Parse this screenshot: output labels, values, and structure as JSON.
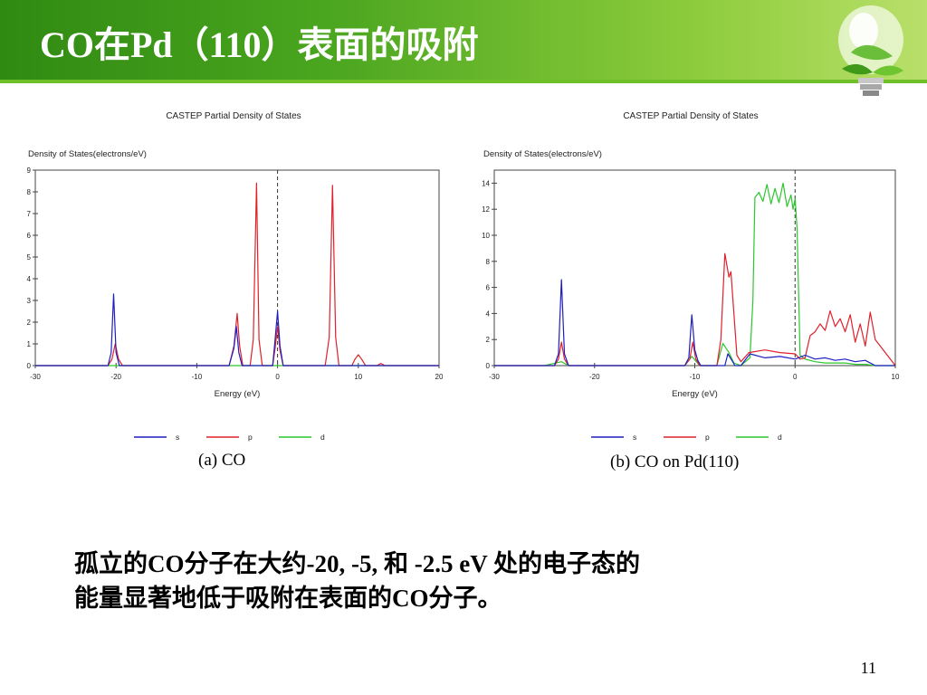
{
  "slide": {
    "title": "CO在Pd（110）表面的吸附",
    "body_line1": "孤立的CO分子在大约-20, -5,  和 -2.5 eV 处的电子态的",
    "body_line2": "能量显著地低于吸附在表面的CO分子。",
    "page_number": "11",
    "accent_color": "#4aa51f"
  },
  "chart_data": [
    {
      "type": "line",
      "title": "CASTEP Partial  Density of States",
      "caption": "(a) CO",
      "xlabel": "Energy (eV)",
      "ylabel": "Density of States(electrons/eV)",
      "xlim": [
        -30,
        20
      ],
      "ylim": [
        0,
        9
      ],
      "xticks": [
        -30,
        -20,
        -10,
        0,
        10,
        20
      ],
      "yticks": [
        0,
        1,
        2,
        3,
        4,
        5,
        6,
        7,
        8,
        9
      ],
      "fermi_level": 0,
      "legend_position": "bottom",
      "series": [
        {
          "name": "s",
          "color": "#1f1fbf",
          "x": [
            -30,
            -21,
            -20.6,
            -20.3,
            -20,
            -19.6,
            -19.2,
            -6,
            -5.4,
            -5.1,
            -4.8,
            -4.4,
            -3.8,
            -3,
            -2.5,
            -2,
            -0.6,
            -0.3,
            0,
            0.3,
            0.7,
            20
          ],
          "y": [
            0,
            0,
            0.6,
            3.3,
            0.6,
            0,
            0,
            0,
            0.8,
            1.8,
            0.6,
            0,
            0,
            0,
            0,
            0,
            0,
            1.2,
            2.5,
            0.9,
            0,
            0
          ]
        },
        {
          "name": "p",
          "color": "#e0202a",
          "x": [
            -30,
            -21,
            -20.5,
            -20.1,
            -19.7,
            -19.2,
            -6,
            -5.4,
            -5.0,
            -4.7,
            -4.3,
            -3.4,
            -3.0,
            -2.6,
            -2.3,
            -1.9,
            -0.6,
            -0.3,
            0,
            0.3,
            0.7,
            5.9,
            6.4,
            6.8,
            7.2,
            7.6,
            9.2,
            9.6,
            10.0,
            10.4,
            10.9,
            12.3,
            12.8,
            13.3,
            20
          ],
          "y": [
            0,
            0,
            0.3,
            1.0,
            0.3,
            0,
            0,
            0.9,
            2.4,
            0.9,
            0,
            0,
            1.2,
            8.4,
            1.2,
            0,
            0,
            0.8,
            1.8,
            0.7,
            0,
            0,
            1.3,
            8.3,
            1.3,
            0,
            0,
            0.3,
            0.5,
            0.3,
            0,
            0,
            0.1,
            0,
            0
          ]
        },
        {
          "name": "d",
          "color": "#2cc72c",
          "x": [
            -30,
            20
          ],
          "y": [
            0,
            0
          ]
        }
      ]
    },
    {
      "type": "line",
      "title": "CASTEP Partial  Density of States",
      "caption": "(b) CO on Pd(110)",
      "xlabel": "Energy (eV)",
      "ylabel": "Density of States(electrons/eV)",
      "xlim": [
        -30,
        10
      ],
      "ylim": [
        0,
        15
      ],
      "xticks": [
        -30,
        -20,
        -10,
        0,
        10
      ],
      "yticks": [
        0,
        2,
        4,
        6,
        8,
        10,
        12,
        14
      ],
      "fermi_level": 0,
      "legend_position": "bottom",
      "series": [
        {
          "name": "s",
          "color": "#1f1fbf",
          "x": [
            -30,
            -24,
            -23.6,
            -23.3,
            -23.0,
            -22.6,
            -11,
            -10.6,
            -10.3,
            -10.0,
            -9.7,
            -9.4,
            -8.5,
            -7.0,
            -6.7,
            -6.3,
            -6.0,
            -5.4,
            -4.5,
            -3,
            -1.5,
            0,
            1,
            2,
            3,
            4,
            5,
            6,
            7,
            8,
            10
          ],
          "y": [
            0,
            0,
            0.9,
            6.6,
            0.9,
            0,
            0,
            0.6,
            3.9,
            1.2,
            0.4,
            0,
            0,
            0,
            0.9,
            0.4,
            0,
            0,
            0.9,
            0.6,
            0.7,
            0.5,
            0.8,
            0.5,
            0.6,
            0.4,
            0.5,
            0.3,
            0.4,
            0,
            0
          ]
        },
        {
          "name": "p",
          "color": "#e0202a",
          "x": [
            -30,
            -24,
            -23.6,
            -23.3,
            -23.0,
            -22.6,
            -11,
            -10.5,
            -10.2,
            -9.9,
            -9.5,
            -7.8,
            -7.4,
            -7.0,
            -6.6,
            -6.4,
            -6.1,
            -5.8,
            -5.4,
            -4.6,
            -3,
            -1.5,
            0,
            0.5,
            1,
            1.5,
            2,
            2.5,
            3,
            3.5,
            4,
            4.5,
            5,
            5.5,
            6,
            6.5,
            7,
            7.5,
            8,
            10
          ],
          "y": [
            0,
            0,
            0.5,
            1.8,
            0.5,
            0,
            0,
            0.5,
            1.8,
            0.5,
            0,
            0,
            2.0,
            8.6,
            6.8,
            7.2,
            4.0,
            0.8,
            0.3,
            1.0,
            1.2,
            1.0,
            0.9,
            0.5,
            0.6,
            2.3,
            2.6,
            3.2,
            2.7,
            4.2,
            3.0,
            3.6,
            2.6,
            3.9,
            1.8,
            3.2,
            1.5,
            4.1,
            2.0,
            0
          ]
        },
        {
          "name": "d",
          "color": "#2cc72c",
          "x": [
            -30,
            -25,
            -23.3,
            -22.6,
            -11,
            -10.3,
            -9.5,
            -7.8,
            -7.2,
            -6.6,
            -6.1,
            -5.4,
            -4.5,
            -4.2,
            -4.0,
            -3.6,
            -3.2,
            -2.8,
            -2.4,
            -2.0,
            -1.6,
            -1.2,
            -0.8,
            -0.4,
            -0.2,
            0,
            0.2,
            0.5,
            1,
            2,
            3,
            4,
            5,
            6,
            7,
            8,
            10
          ],
          "y": [
            0,
            0,
            0.3,
            0,
            0,
            0.7,
            0,
            0,
            1.7,
            1.0,
            0.2,
            0,
            0.6,
            5,
            12.9,
            13.3,
            12.6,
            13.9,
            12.4,
            13.6,
            12.5,
            14.0,
            12.2,
            13.1,
            12.0,
            12.8,
            10.5,
            0.8,
            0.5,
            0.3,
            0.2,
            0.2,
            0.2,
            0.1,
            0.1,
            0,
            0
          ]
        }
      ]
    }
  ]
}
